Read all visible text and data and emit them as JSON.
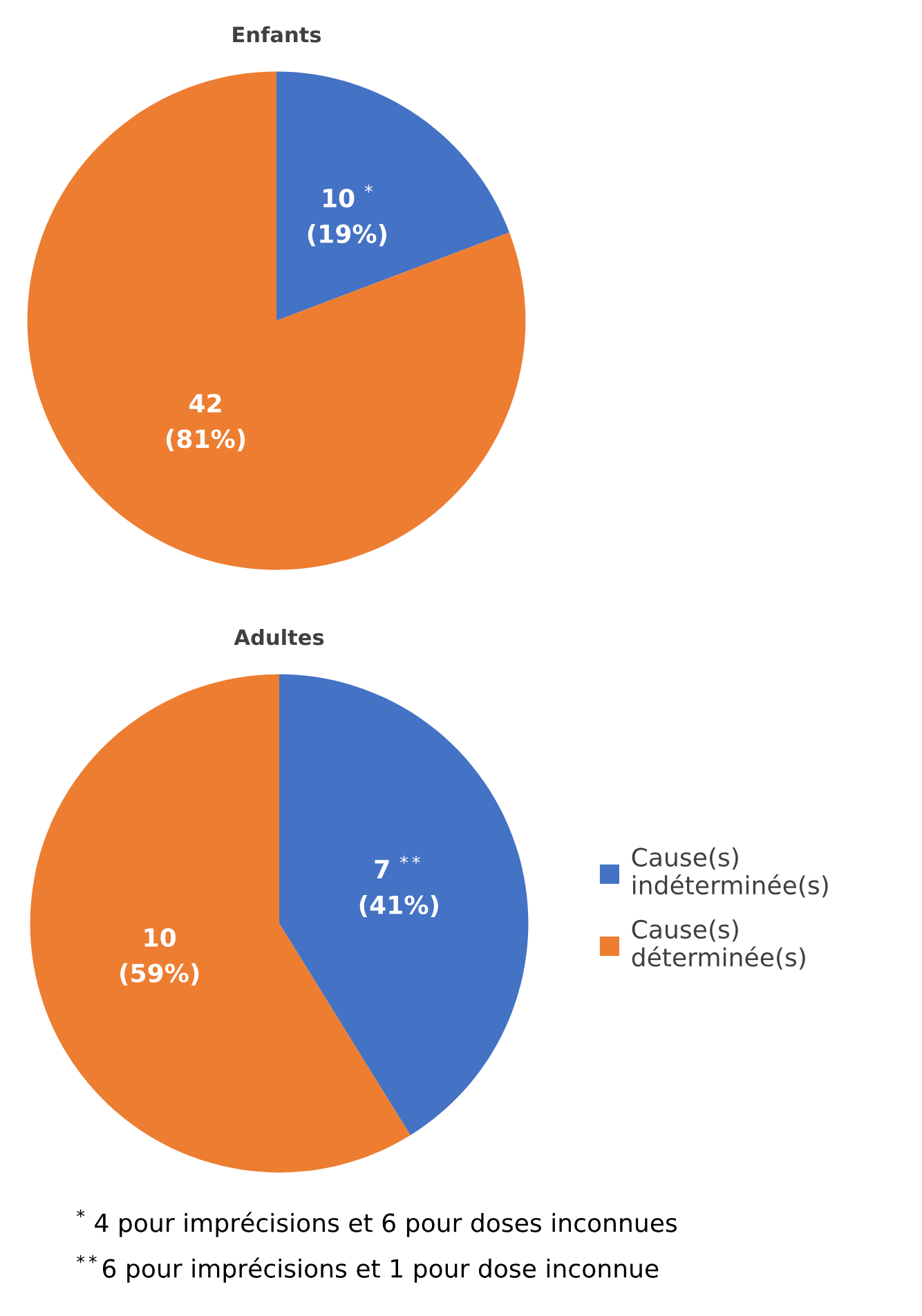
{
  "chart_data": [
    {
      "type": "pie",
      "title": "Enfants",
      "categories": [
        "Cause(s)\nindéterminée(s)",
        "Cause(s)\ndéterminée(s)"
      ],
      "values": [
        10,
        42
      ],
      "colors": [
        "#4472c4",
        "#ed7d31"
      ],
      "value_labels": [
        "10 $^{*}$\n(19%)",
        "42\n(81%)"
      ],
      "legend": "bottom right"
    },
    {
      "type": "pie",
      "title": "Adultes",
      "categories": [
        null,
        null
      ],
      "values": [
        7,
        10
      ],
      "colors": [
        "#4472c4",
        "#ed7d31"
      ],
      "value_labels": [
        "7 $^{**}$\n(41%)",
        "10\n(59%)"
      ],
      "annotations": [
        "$^{*}$ 4 pour imprécisions et 6 pour doses inconnues",
        "$^{**}$6 pour imprécisions et 1 pour dose inconnue"
      ]
    }
  ]
}
